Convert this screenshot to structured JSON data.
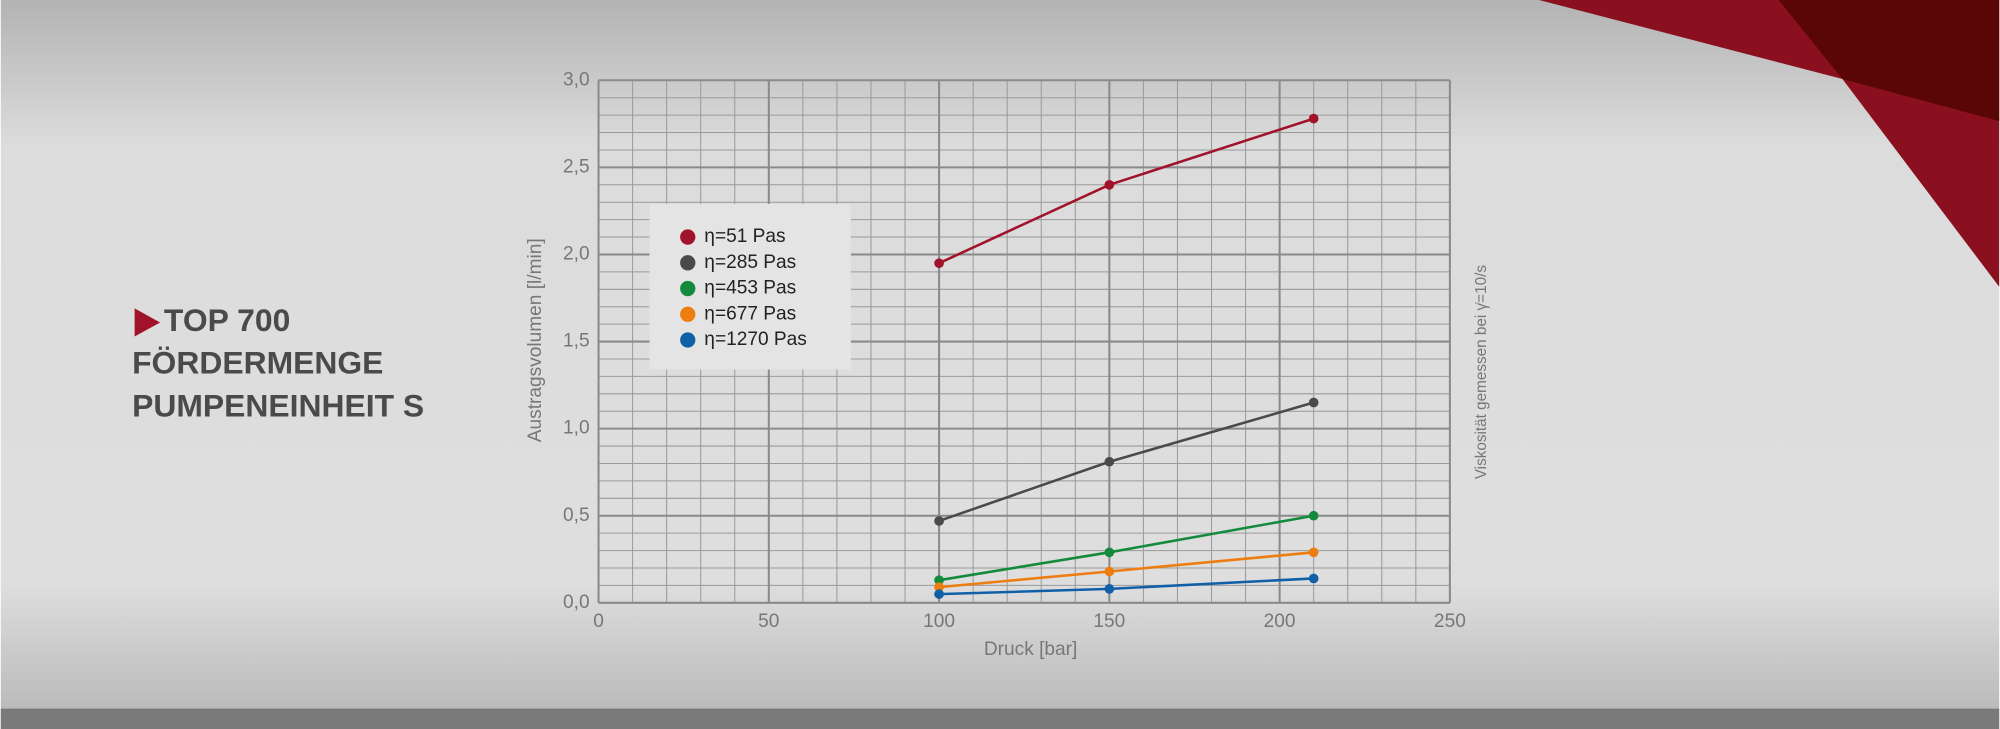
{
  "chart_data": {
    "type": "line",
    "title": [
      "TOP 700",
      "FÖRDERMENGE",
      "PUMPENEINHEIT S"
    ],
    "x_label": "Druck [bar]",
    "y_label": "Austragsvolumen [l/min]",
    "annotation": "Viskosität gemessen bei γ̇=10/s",
    "x": [
      100,
      150,
      210
    ],
    "series": [
      {
        "name": "η=51 Pas",
        "color": "#a0132b",
        "values": [
          1.95,
          2.4,
          2.78
        ]
      },
      {
        "name": "η=285 Pas",
        "color": "#4a4a4a",
        "values": [
          0.47,
          0.81,
          1.15
        ]
      },
      {
        "name": "η=453 Pas",
        "color": "#138a3c",
        "values": [
          0.13,
          0.29,
          0.5
        ]
      },
      {
        "name": "η=677 Pas",
        "color": "#ee7d10",
        "values": [
          0.09,
          0.18,
          0.29
        ]
      },
      {
        "name": "η=1270 Pas",
        "color": "#1060a8",
        "values": [
          0.05,
          0.08,
          0.14
        ]
      }
    ],
    "xlim": [
      0,
      250
    ],
    "xticks": [
      0,
      50,
      100,
      150,
      200,
      250
    ],
    "ylim": [
      0,
      3
    ],
    "yticks": [
      {
        "value": 0,
        "label": "0,0"
      },
      {
        "value": 0.5,
        "label": "0,5"
      },
      {
        "value": 1,
        "label": "1,0"
      },
      {
        "value": 1.5,
        "label": "1,5"
      },
      {
        "value": 2,
        "label": "2,0"
      },
      {
        "value": 2.5,
        "label": "2,5"
      },
      {
        "value": 3,
        "label": "3,0"
      }
    ],
    "grid": true,
    "legend": "upper left"
  }
}
